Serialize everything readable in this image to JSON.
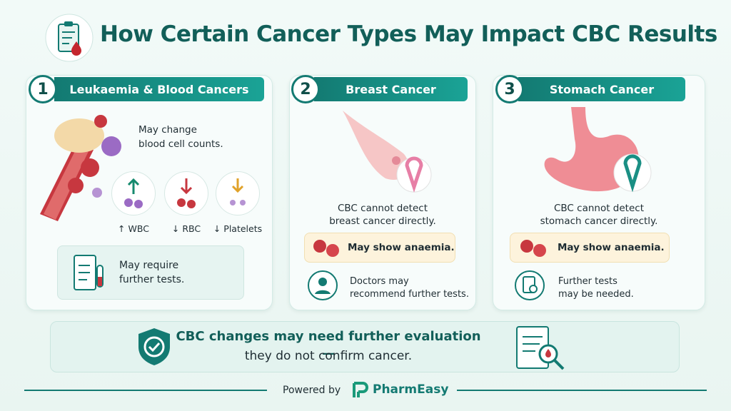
{
  "title": "How Certain Cancer Types May Impact CBC Results",
  "cards": [
    {
      "number": "1",
      "title": "Leukaemia & Blood Cancers",
      "description": [
        "May change",
        "blood cell counts."
      ],
      "indicators": [
        "↑ WBC",
        "↓ RBC",
        "↓ Platelets"
      ],
      "note": [
        "May require",
        "further tests."
      ]
    },
    {
      "number": "2",
      "title": "Breast Cancer",
      "description": [
        "CBC cannot detect",
        "breast cancer directly."
      ],
      "highlight": "May show anaemia.",
      "note": [
        "Doctors may",
        "recommend further tests."
      ]
    },
    {
      "number": "3",
      "title": "Stomach Cancer",
      "description": [
        "CBC cannot detect",
        "stomach cancer directly."
      ],
      "highlight": "May show anaemia.",
      "note": [
        "Further tests",
        "may be needed."
      ]
    }
  ],
  "banner": [
    "CBC changes may need further evaluation —",
    "they do not confirm cancer."
  ],
  "footer": {
    "prefix": "Powered by",
    "brand": "PharmEasy"
  }
}
